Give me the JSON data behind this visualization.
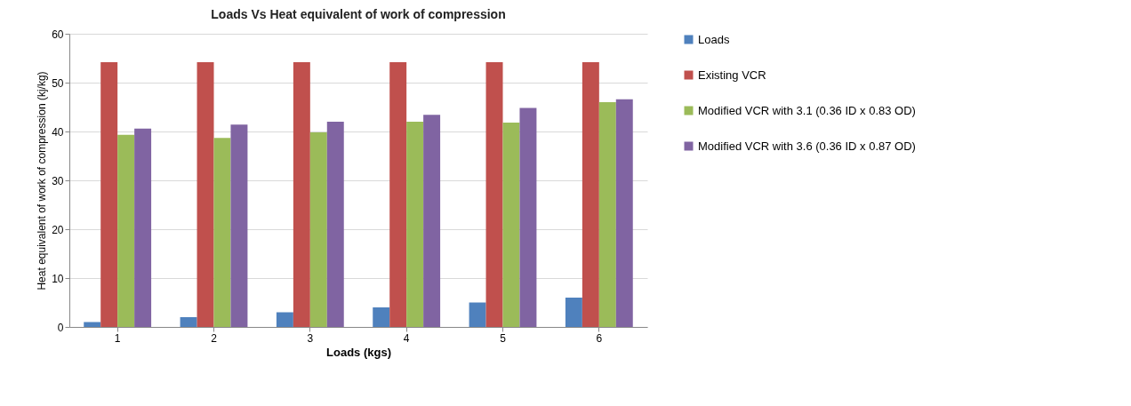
{
  "chart_data": {
    "type": "bar",
    "title": "Loads Vs Heat equivalent of work of compression",
    "xlabel": "Loads (kgs)",
    "ylabel": "Heat equivalent of work of compression (kj/kg)",
    "categories": [
      "1",
      "2",
      "3",
      "4",
      "5",
      "6"
    ],
    "series": [
      {
        "name": "Loads",
        "color": "#4f81bd",
        "values": [
          1,
          2,
          3,
          4,
          5,
          6
        ]
      },
      {
        "name": "Existing VCR",
        "color": "#c0504d",
        "values": [
          54.2,
          54.2,
          54.2,
          54.2,
          54.2,
          54.2
        ]
      },
      {
        "name": "Modified VCR with 3.1 (0.36 ID x 0.83 OD)",
        "color": "#9bbb59",
        "values": [
          39.3,
          38.7,
          39.8,
          42.0,
          41.8,
          46.0
        ]
      },
      {
        "name": "Modified VCR with 3.6 (0.36 ID x 0.87 OD)",
        "color": "#8064a2",
        "values": [
          40.6,
          41.4,
          42.0,
          43.4,
          44.8,
          46.6
        ]
      }
    ],
    "ylim": [
      0,
      60
    ],
    "yticks": [
      0,
      10,
      20,
      30,
      40,
      50,
      60
    ],
    "grid": "y",
    "legend": "right"
  }
}
